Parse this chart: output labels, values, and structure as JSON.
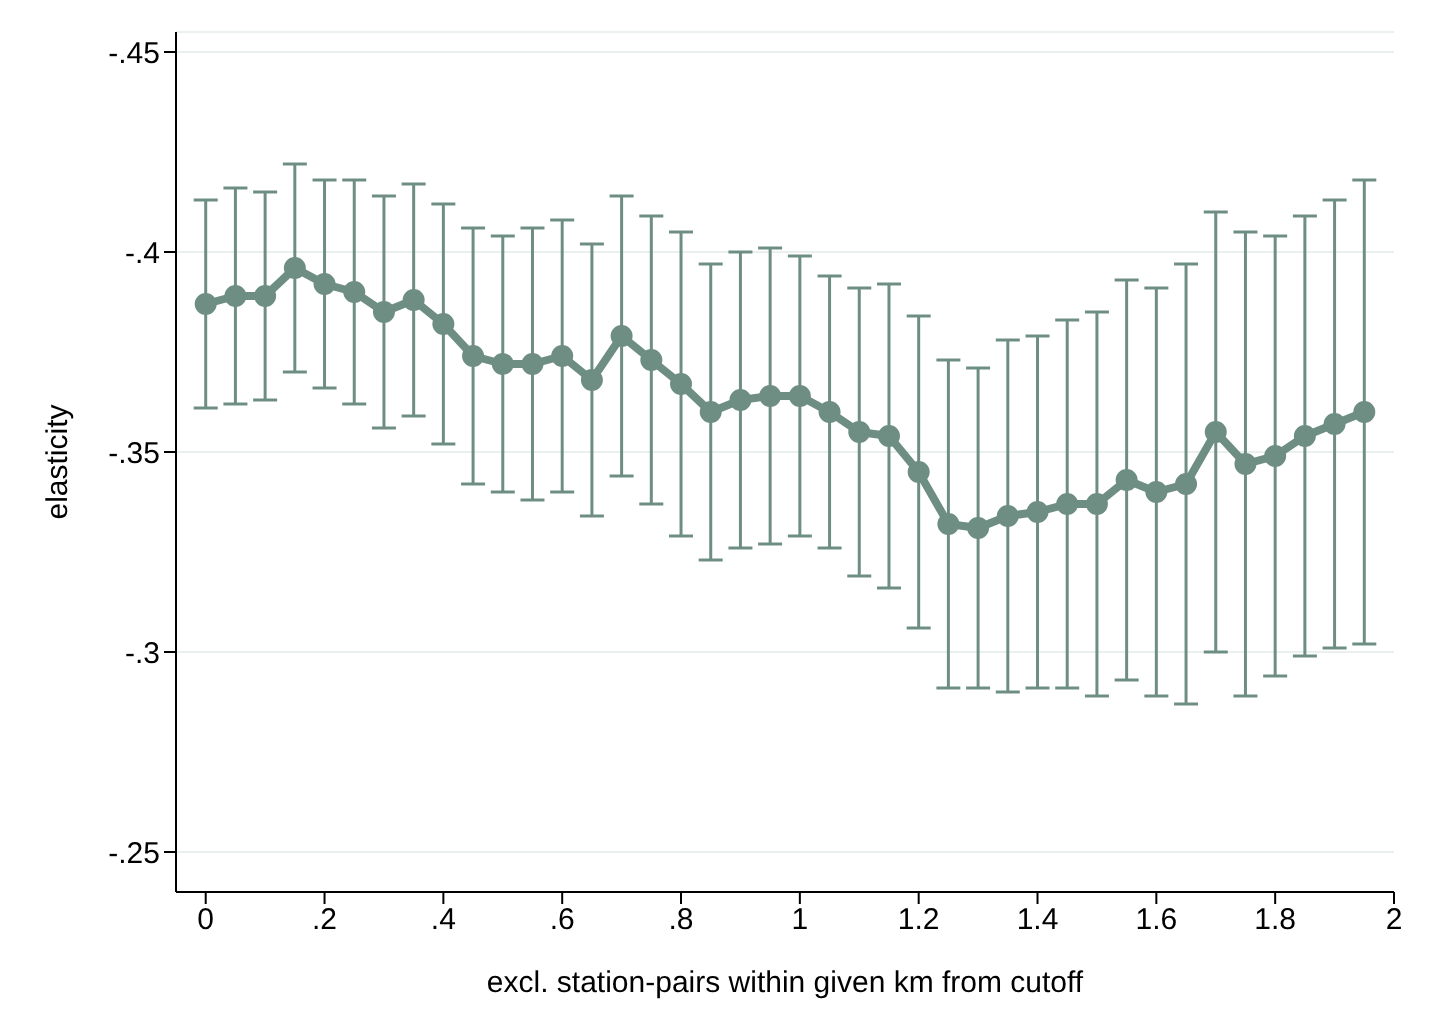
{
  "chart_data": {
    "type": "line",
    "xlabel": "excl. station-pairs within given km from cutoff",
    "ylabel": "elasticity",
    "x": [
      0,
      0.05,
      0.1,
      0.15,
      0.2,
      0.25,
      0.3,
      0.35,
      0.4,
      0.45,
      0.5,
      0.55,
      0.6,
      0.65,
      0.7,
      0.75,
      0.8,
      0.85,
      0.9,
      0.95,
      1,
      1.05,
      1.1,
      1.15,
      1.2,
      1.25,
      1.3,
      1.35,
      1.4,
      1.45,
      1.5,
      1.55,
      1.6,
      1.65,
      1.7,
      1.75,
      1.8,
      1.85,
      1.9,
      1.95
    ],
    "series": [
      {
        "color": "#6e8e84",
        "values": [
          -0.387,
          -0.389,
          -0.389,
          -0.396,
          -0.392,
          -0.39,
          -0.385,
          -0.388,
          -0.382,
          -0.374,
          -0.372,
          -0.372,
          -0.374,
          -0.368,
          -0.379,
          -0.373,
          -0.367,
          -0.36,
          -0.363,
          -0.364,
          -0.364,
          -0.36,
          -0.355,
          -0.354,
          -0.345,
          -0.332,
          -0.331,
          -0.334,
          -0.335,
          -0.337,
          -0.337,
          -0.343,
          -0.34,
          -0.342,
          -0.355,
          -0.347,
          -0.349,
          -0.354,
          -0.357,
          -0.36
        ],
        "errors": [
          0.026,
          0.027,
          0.026,
          0.026,
          0.026,
          0.028,
          0.029,
          0.029,
          0.03,
          0.032,
          0.032,
          0.034,
          0.034,
          0.034,
          0.035,
          0.036,
          0.038,
          0.037,
          0.037,
          0.037,
          0.035,
          0.034,
          0.036,
          0.038,
          0.039,
          0.041,
          0.04,
          0.044,
          0.044,
          0.046,
          0.048,
          0.05,
          0.051,
          0.055,
          0.055,
          0.058,
          0.055,
          0.055,
          0.056,
          0.058
        ]
      }
    ],
    "xlim": [
      -0.05,
      2
    ],
    "xticks": [
      0,
      {
        "value": 0.2,
        "label": ".2"
      },
      {
        "value": 0.4,
        "label": ".4"
      },
      {
        "value": 0.6,
        "label": ".6"
      },
      {
        "value": 0.8,
        "label": ".8"
      },
      1,
      1.2,
      1.4,
      1.6,
      1.8,
      2
    ],
    "ylim": [
      -0.24,
      -0.455
    ],
    "yticks": [
      {
        "value": -0.45,
        "label": "-.45"
      },
      {
        "value": -0.4,
        "label": "-.4"
      },
      {
        "value": -0.35,
        "label": "-.35"
      },
      {
        "value": -0.3,
        "label": "-.3"
      },
      {
        "value": -0.25,
        "label": "-.25"
      }
    ],
    "grid": "y",
    "marker": "circle",
    "line_style": "solid"
  }
}
